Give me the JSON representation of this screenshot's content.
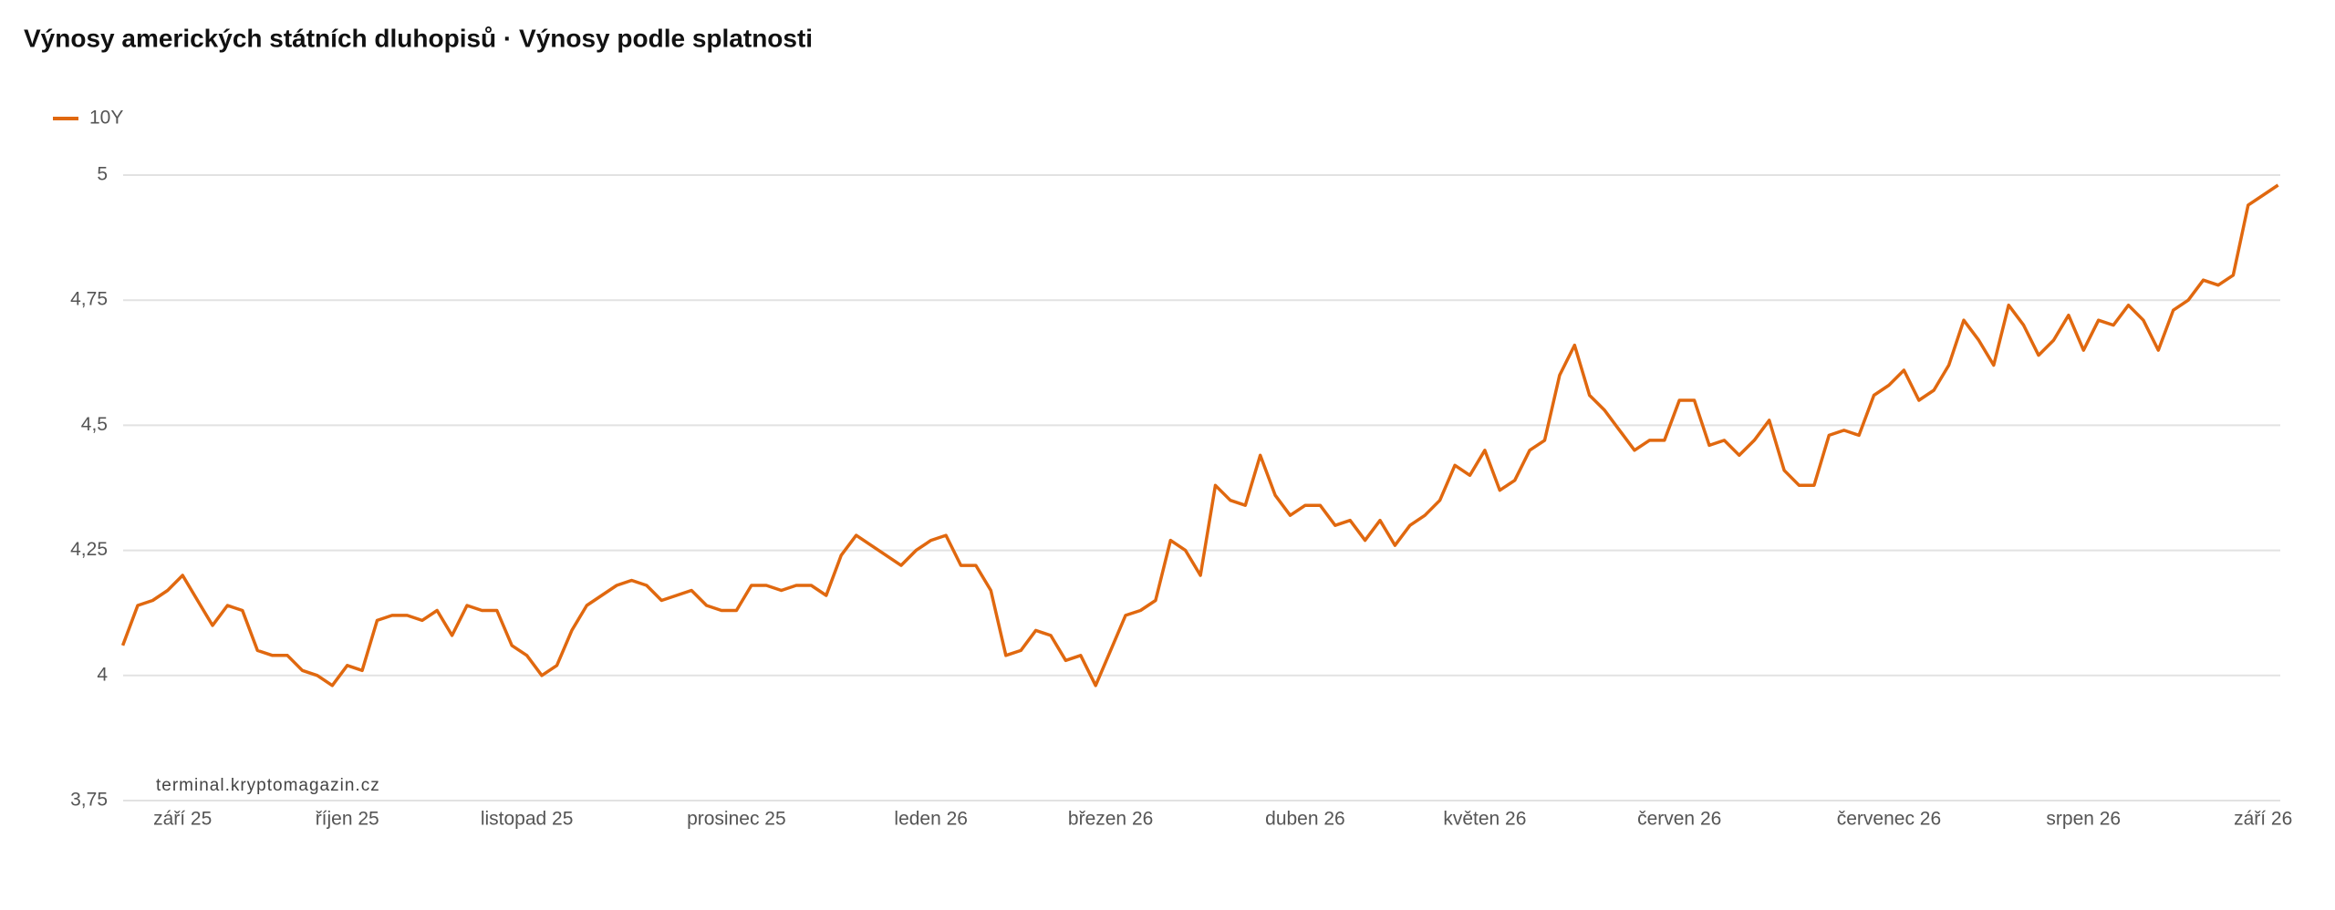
{
  "chart_data": {
    "type": "line",
    "title": "Výnosy amerických státních dluhopisů · Výnosy podle splatnosti",
    "watermark": "terminal.kryptomagazin.cz",
    "categories": [
      null,
      null,
      null,
      null,
      "září 25",
      null,
      null,
      null,
      null,
      null,
      null,
      null,
      null,
      null,
      null,
      "říjen 25",
      null,
      null,
      null,
      null,
      null,
      null,
      null,
      null,
      null,
      null,
      null,
      "listopad 25",
      null,
      null,
      null,
      null,
      null,
      null,
      null,
      null,
      null,
      null,
      null,
      null,
      null,
      "prosinec 25",
      null,
      null,
      null,
      null,
      null,
      null,
      null,
      null,
      null,
      null,
      null,
      null,
      "leden 26",
      null,
      null,
      null,
      null,
      null,
      null,
      null,
      null,
      null,
      null,
      null,
      "březen 26",
      null,
      null,
      null,
      null,
      null,
      null,
      null,
      null,
      null,
      null,
      null,
      null,
      "duben 26",
      null,
      null,
      null,
      null,
      null,
      null,
      null,
      null,
      null,
      null,
      null,
      "květen 26",
      null,
      null,
      null,
      null,
      null,
      null,
      null,
      null,
      null,
      null,
      null,
      null,
      "červen 26",
      null,
      null,
      null,
      null,
      null,
      null,
      null,
      null,
      null,
      null,
      null,
      null,
      null,
      "červenec 26",
      null,
      null,
      null,
      null,
      null,
      null,
      null,
      null,
      null,
      null,
      null,
      null,
      "srpen 26",
      null,
      null,
      null,
      null,
      null,
      null,
      null,
      null,
      null,
      null,
      null,
      "září 26",
      null
    ],
    "series": [
      {
        "name": "10Y",
        "color": "#e0680f",
        "values": [
          4.06,
          4.14,
          4.15,
          4.17,
          4.2,
          4.15,
          4.1,
          4.14,
          4.13,
          4.05,
          4.04,
          4.04,
          4.01,
          4.0,
          3.98,
          4.02,
          4.01,
          4.11,
          4.12,
          4.12,
          4.11,
          4.13,
          4.08,
          4.14,
          4.13,
          4.13,
          4.06,
          4.04,
          4.0,
          4.02,
          4.09,
          4.14,
          4.16,
          4.18,
          4.19,
          4.18,
          4.15,
          4.16,
          4.17,
          4.14,
          4.13,
          4.13,
          4.18,
          4.18,
          4.17,
          4.18,
          4.18,
          4.16,
          4.24,
          4.28,
          4.26,
          4.24,
          4.22,
          4.25,
          4.27,
          4.28,
          4.22,
          4.22,
          4.17,
          4.04,
          4.05,
          4.09,
          4.08,
          4.03,
          4.04,
          3.98,
          4.05,
          4.12,
          4.13,
          4.15,
          4.27,
          4.25,
          4.2,
          4.38,
          4.35,
          4.34,
          4.44,
          4.36,
          4.32,
          4.34,
          4.34,
          4.3,
          4.31,
          4.27,
          4.31,
          4.26,
          4.3,
          4.32,
          4.35,
          4.42,
          4.4,
          4.45,
          4.37,
          4.39,
          4.45,
          4.47,
          4.6,
          4.66,
          4.56,
          4.53,
          4.49,
          4.45,
          4.47,
          4.47,
          4.55,
          4.55,
          4.46,
          4.47,
          4.44,
          4.47,
          4.51,
          4.41,
          4.38,
          4.38,
          4.48,
          4.49,
          4.48,
          4.56,
          4.58,
          4.61,
          4.55,
          4.57,
          4.62,
          4.71,
          4.67,
          4.62,
          4.74,
          4.7,
          4.64,
          4.67,
          4.72,
          4.65,
          4.71,
          4.7,
          4.74,
          4.71,
          4.65,
          4.73,
          4.75,
          4.79,
          4.78,
          4.8,
          4.94,
          4.96,
          4.98
        ]
      }
    ],
    "ylim": [
      3.75,
      5
    ],
    "yticks": [
      {
        "value": 3.75,
        "label": "3,75"
      },
      4,
      {
        "value": 4.25,
        "label": "4,25"
      },
      {
        "value": 4.5,
        "label": "4,5"
      },
      {
        "value": 4.75,
        "label": "4,75"
      },
      5
    ],
    "grid": true
  }
}
